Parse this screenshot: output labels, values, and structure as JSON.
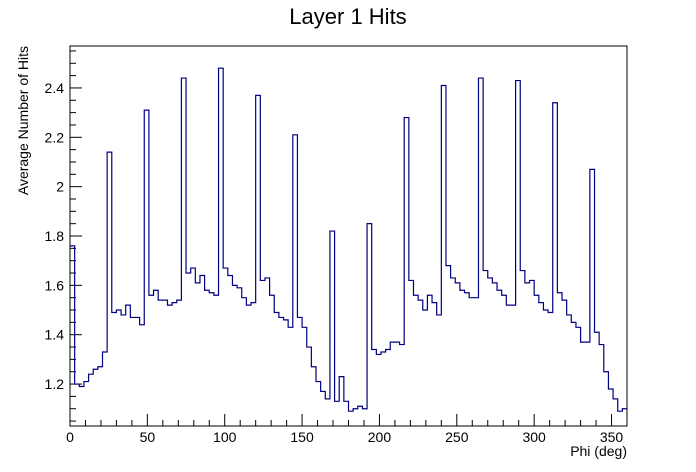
{
  "chart_data": {
    "type": "histogram",
    "title": "Layer 1 Hits",
    "xlabel": "Phi (deg)",
    "ylabel": "Average Number of Hits",
    "xlim": [
      0,
      360
    ],
    "ylim": [
      1.03,
      2.57
    ],
    "bin_width": 3,
    "x_ticks": [
      0,
      50,
      100,
      150,
      200,
      250,
      300,
      350
    ],
    "y_ticks": [
      1.2,
      1.4,
      1.6,
      1.8,
      2.0,
      2.2,
      2.4
    ],
    "x_tick_labels": [
      "0",
      "50",
      "100",
      "150",
      "200",
      "250",
      "300",
      "350"
    ],
    "y_tick_labels": [
      "1.2",
      "1.4",
      "1.6",
      "1.8",
      "2",
      "2.2",
      "2.4"
    ],
    "line_color": "#000080",
    "values": [
      1.76,
      1.2,
      1.19,
      1.21,
      1.24,
      1.26,
      1.27,
      1.33,
      2.14,
      1.49,
      1.5,
      1.48,
      1.52,
      1.47,
      1.47,
      1.44,
      2.31,
      1.56,
      1.58,
      1.54,
      1.54,
      1.52,
      1.53,
      1.54,
      2.44,
      1.65,
      1.67,
      1.61,
      1.64,
      1.58,
      1.57,
      1.56,
      2.48,
      1.67,
      1.64,
      1.6,
      1.59,
      1.55,
      1.52,
      1.53,
      2.37,
      1.62,
      1.63,
      1.56,
      1.49,
      1.47,
      1.46,
      1.43,
      2.21,
      1.47,
      1.43,
      1.35,
      1.27,
      1.21,
      1.17,
      1.14,
      1.82,
      1.13,
      1.23,
      1.13,
      1.09,
      1.1,
      1.11,
      1.1,
      1.85,
      1.34,
      1.32,
      1.33,
      1.34,
      1.37,
      1.37,
      1.36,
      2.28,
      1.62,
      1.56,
      1.54,
      1.5,
      1.56,
      1.53,
      1.48,
      2.41,
      1.68,
      1.63,
      1.61,
      1.58,
      1.57,
      1.55,
      1.55,
      2.44,
      1.66,
      1.63,
      1.61,
      1.58,
      1.56,
      1.52,
      1.52,
      2.43,
      1.66,
      1.61,
      1.62,
      1.56,
      1.53,
      1.5,
      1.49,
      2.34,
      1.57,
      1.54,
      1.48,
      1.45,
      1.43,
      1.37,
      1.37,
      2.07,
      1.41,
      1.36,
      1.25,
      1.18,
      1.14,
      1.09,
      1.1
    ]
  }
}
